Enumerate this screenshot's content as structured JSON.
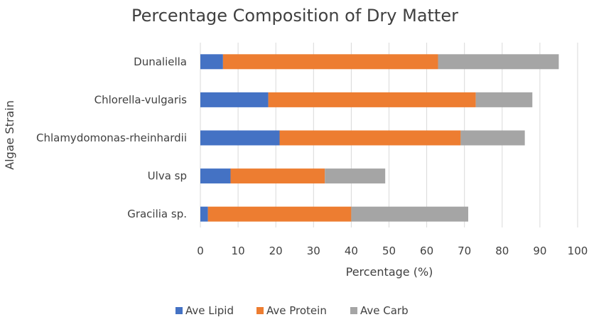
{
  "chart_data": {
    "type": "bar",
    "orientation": "horizontal",
    "stacked": true,
    "title": "Percentage Composition of Dry Matter",
    "xlabel": "Percentage (%)",
    "ylabel": "Algae Strain",
    "xlim": [
      0,
      100
    ],
    "xticks": [
      0,
      10,
      20,
      30,
      40,
      50,
      60,
      70,
      80,
      90,
      100
    ],
    "grid": true,
    "legend_position": "bottom",
    "categories": [
      "Dunaliella",
      "Chlorella-vulgaris",
      "Chlamydomonas-rheinhardii",
      "Ulva sp",
      "Gracilia sp."
    ],
    "series": [
      {
        "name": "Ave Lipid",
        "color": "#4472C4",
        "values": [
          6,
          18,
          21,
          8,
          2
        ]
      },
      {
        "name": "Ave Protein",
        "color": "#ED7D31",
        "values": [
          57,
          55,
          48,
          25,
          38
        ]
      },
      {
        "name": "Ave Carb",
        "color": "#A5A5A5",
        "values": [
          32,
          15,
          17,
          16,
          31
        ]
      }
    ]
  }
}
